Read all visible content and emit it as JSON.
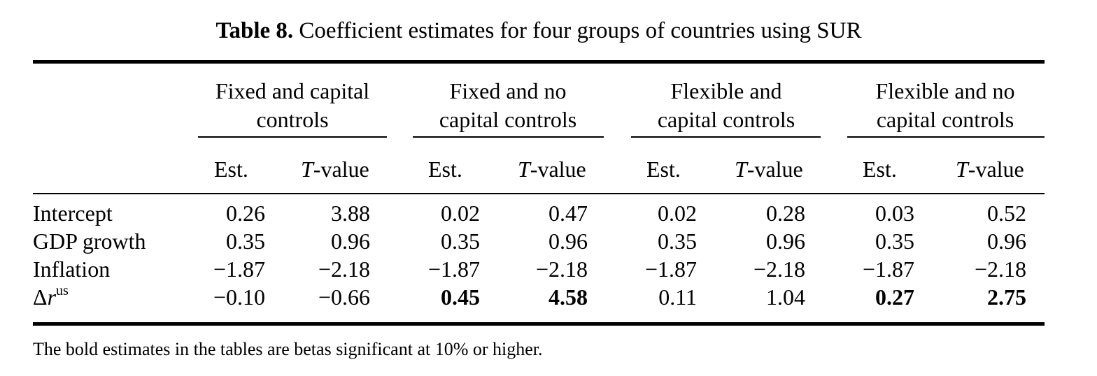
{
  "table": {
    "label": "Table 8.",
    "title": "Coefficient estimates for four groups of countries using SUR",
    "groups": [
      {
        "line1": "Fixed and capital",
        "line2": "controls"
      },
      {
        "line1": "Fixed and no",
        "line2": "capital controls"
      },
      {
        "line1": "Flexible and",
        "line2": "capital controls"
      },
      {
        "line1": "Flexible and no",
        "line2": "capital controls"
      }
    ],
    "est_label": "Est.",
    "t_italic": "T",
    "t_suffix": "-value",
    "rows": [
      {
        "label": "Intercept",
        "cells": [
          {
            "value": "0.26",
            "bold": false
          },
          {
            "value": "3.88",
            "bold": false
          },
          {
            "value": "0.02",
            "bold": false
          },
          {
            "value": "0.47",
            "bold": false
          },
          {
            "value": "0.02",
            "bold": false
          },
          {
            "value": "0.28",
            "bold": false
          },
          {
            "value": "0.03",
            "bold": false
          },
          {
            "value": "0.52",
            "bold": false
          }
        ]
      },
      {
        "label": "GDP growth",
        "cells": [
          {
            "value": "0.35",
            "bold": false
          },
          {
            "value": "0.96",
            "bold": false
          },
          {
            "value": "0.35",
            "bold": false
          },
          {
            "value": "0.96",
            "bold": false
          },
          {
            "value": "0.35",
            "bold": false
          },
          {
            "value": "0.96",
            "bold": false
          },
          {
            "value": "0.35",
            "bold": false
          },
          {
            "value": "0.96",
            "bold": false
          }
        ]
      },
      {
        "label": "Inflation",
        "cells": [
          {
            "value": "−1.87",
            "bold": false
          },
          {
            "value": "−2.18",
            "bold": false
          },
          {
            "value": "−1.87",
            "bold": false
          },
          {
            "value": "−2.18",
            "bold": false
          },
          {
            "value": "−1.87",
            "bold": false
          },
          {
            "value": "−2.18",
            "bold": false
          },
          {
            "value": "−1.87",
            "bold": false
          },
          {
            "value": "−2.18",
            "bold": false
          }
        ]
      },
      {
        "label_delta": "Δ",
        "label_var": "r",
        "label_sup": "us",
        "cells": [
          {
            "value": "−0.10",
            "bold": false
          },
          {
            "value": "−0.66",
            "bold": false
          },
          {
            "value": "0.45",
            "bold": true
          },
          {
            "value": "4.58",
            "bold": true
          },
          {
            "value": "0.11",
            "bold": false
          },
          {
            "value": "1.04",
            "bold": false
          },
          {
            "value": "0.27",
            "bold": true
          },
          {
            "value": "2.75",
            "bold": true
          }
        ]
      }
    ],
    "footnote": "The bold estimates in the tables are betas significant at 10% or higher."
  }
}
